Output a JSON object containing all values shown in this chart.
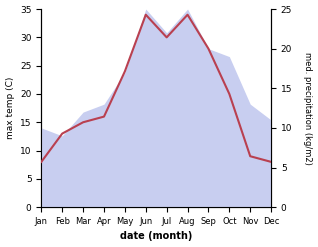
{
  "months": [
    "Jan",
    "Feb",
    "Mar",
    "Apr",
    "May",
    "Jun",
    "Jul",
    "Aug",
    "Sep",
    "Oct",
    "Nov",
    "Dec"
  ],
  "temperature": [
    8,
    13,
    15,
    16,
    24,
    34,
    30,
    34,
    28,
    20,
    9,
    8
  ],
  "precipitation": [
    10,
    9,
    12,
    13,
    17,
    25,
    22,
    25,
    20,
    19,
    13,
    11
  ],
  "temp_color": "#b94050",
  "precip_color_fill": "#c8cef0",
  "temp_ylim": [
    0,
    35
  ],
  "precip_ylim": [
    0,
    25
  ],
  "temp_yticks": [
    0,
    5,
    10,
    15,
    20,
    25,
    30,
    35
  ],
  "precip_yticks": [
    0,
    5,
    10,
    15,
    20,
    25
  ],
  "xlabel": "date (month)",
  "ylabel_left": "max temp (C)",
  "ylabel_right": "med. precipitation (kg/m2)",
  "background_color": "#ffffff"
}
